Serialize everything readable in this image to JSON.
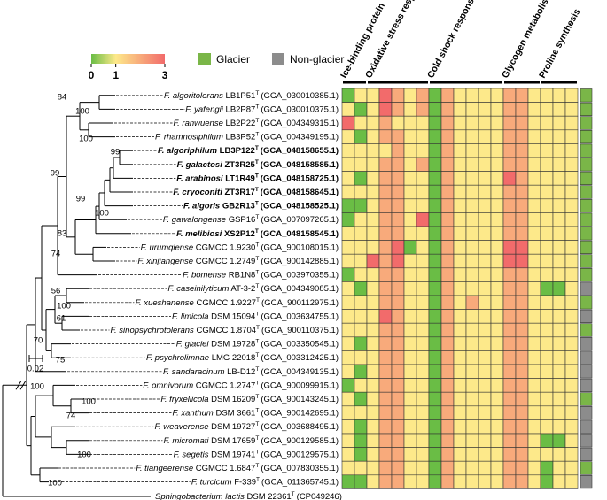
{
  "chart_data": {
    "type": "heatmap",
    "colorbar": {
      "range": [
        0,
        3
      ],
      "ticks": [
        0,
        1,
        3
      ],
      "colors": [
        "#6abd45",
        "#fde98a",
        "#f26b6b"
      ]
    },
    "legend": [
      {
        "name": "Glacier",
        "color": "#7ab648"
      },
      {
        "name": "Non-glacier",
        "color": "#8c8c8c"
      }
    ],
    "scale_bar": "0.02",
    "bootstraps": [
      84,
      100,
      100,
      99,
      99,
      99,
      100,
      83,
      74,
      56,
      100,
      61,
      70,
      75,
      100,
      100,
      74,
      100,
      100
    ],
    "taxa": [
      {
        "species": "F. algoritolerans",
        "strain": "LB1P51",
        "sup": "T",
        "accession": "(GCA_030010385.1)",
        "habitat": "Glacier"
      },
      {
        "species": "F. yafengii",
        "strain": "LB2P87",
        "sup": "T",
        "accession": "(GCA_030010375.1)",
        "habitat": "Glacier"
      },
      {
        "species": "F. ranwuense",
        "strain": "LB2P22",
        "sup": "T",
        "accession": "(GCA_004349315.1)",
        "habitat": "Glacier"
      },
      {
        "species": "F. rhamnosiphilum",
        "strain": "LB3P52",
        "sup": "T",
        "accession": "(GCA_004349195.1)",
        "habitat": "Glacier"
      },
      {
        "species": "F. algoriphilum",
        "strain": "LB3P122",
        "sup": "T",
        "accession": "(GCA_048158655.1)",
        "habitat": "Glacier",
        "bold": true
      },
      {
        "species": "F. galactosi",
        "strain": "ZT3R25",
        "sup": "T",
        "accession": "(GCA_048158585.1)",
        "habitat": "Glacier",
        "bold": true
      },
      {
        "species": "F. arabinosi",
        "strain": "LT1R49",
        "sup": "T",
        "accession": "(GCA_048158725.1)",
        "habitat": "Glacier",
        "bold": true
      },
      {
        "species": "F. cryoconiti",
        "strain": "ZT3R17",
        "sup": "T",
        "accession": "(GCA_048158645.1)",
        "habitat": "Glacier",
        "bold": true
      },
      {
        "species": "F. algoris",
        "strain": "GB2R13",
        "sup": "T",
        "accession": "(GCA_048158525.1)",
        "habitat": "Glacier",
        "bold": true
      },
      {
        "species": "F. gawalongense",
        "strain": "GSP16",
        "sup": "T",
        "accession": "(GCA_007097265.1)",
        "habitat": "Glacier"
      },
      {
        "species": "F. melibiosi",
        "strain": "XS2P12",
        "sup": "T",
        "accession": "(GCA_048158545.1)",
        "habitat": "Glacier",
        "bold": true
      },
      {
        "species": "F. urumqiense",
        "strain": "CGMCC 1.9230",
        "sup": "T",
        "accession": "(GCA_900108015.1)",
        "habitat": "Glacier"
      },
      {
        "species": "F. xinjiangense",
        "strain": "CGMCC 1.2749",
        "sup": "T",
        "accession": "(GCA_900142885.1)",
        "habitat": "Glacier"
      },
      {
        "species": "F. bomense",
        "strain": "RB1N8",
        "sup": "T",
        "accession": "(GCA_003970355.1)",
        "habitat": "Glacier"
      },
      {
        "species": "F. caseinilyticum",
        "strain": "AT-3-2",
        "sup": "T",
        "accession": "(GCA_004349085.1)",
        "habitat": "Non-glacier"
      },
      {
        "species": "F. xueshanense",
        "strain": "CGMCC 1.9227",
        "sup": "T",
        "accession": "(GCA_900112975.1)",
        "habitat": "Glacier"
      },
      {
        "species": "F. limicola",
        "strain": "DSM 15094",
        "sup": "T",
        "accession": "(GCA_003634755.1)",
        "habitat": "Non-glacier"
      },
      {
        "species": "F. sinopsychrotolerans",
        "strain": "CGMCC 1.8704",
        "sup": "T",
        "accession": "(GCA_900110375.1)",
        "habitat": "Glacier"
      },
      {
        "species": "F. glaciei",
        "strain": "DSM 19728",
        "sup": "T",
        "accession": "(GCA_003350545.1)",
        "habitat": "Non-glacier"
      },
      {
        "species": "F. psychrolimnae",
        "strain": "LMG 22018",
        "sup": "T",
        "accession": "(GCA_003312425.1)",
        "habitat": "Non-glacier"
      },
      {
        "species": "F. sandaracinum",
        "strain": "LB-D12",
        "sup": "T",
        "accession": "(GCA_004349135.1)",
        "habitat": "Non-glacier"
      },
      {
        "species": "F. omnivorum",
        "strain": "CGMCC 1.2747",
        "sup": "T",
        "accession": "(GCA_900099915.1)",
        "habitat": "Non-glacier"
      },
      {
        "species": "F. fryxellicola",
        "strain": "DSM 16209",
        "sup": "T",
        "accession": "(GCA_900143245.1)",
        "habitat": "Glacier"
      },
      {
        "species": "F. xanthum",
        "strain": "DSM 3661",
        "sup": "T",
        "accession": "(GCA_900142695.1)",
        "habitat": "Non-glacier"
      },
      {
        "species": "F. weaverense",
        "strain": "DSM 19727",
        "sup": "T",
        "accession": "(GCA_003688495.1)",
        "habitat": "Non-glacier"
      },
      {
        "species": "F. micromati",
        "strain": "DSM 17659",
        "sup": "T",
        "accession": "(GCA_900129585.1)",
        "habitat": "Non-glacier"
      },
      {
        "species": "F. segetis",
        "strain": "DSM 19741",
        "sup": "T",
        "accession": "(GCA_900129575.1)",
        "habitat": "Non-glacier"
      },
      {
        "species": "F. tiangeerense",
        "strain": "CGMCC 1.6847",
        "sup": "T",
        "accession": "(GCA_007830355.1)",
        "habitat": "Glacier"
      },
      {
        "species": "F. turcicum",
        "strain": "F-339",
        "sup": "T",
        "accession": "(GCA_011365745.1)",
        "habitat": "Non-glacier"
      }
    ],
    "outgroup": {
      "species": "Sphingobacterium lactis",
      "strain": "DSM 22361",
      "sup": "T",
      "accession": "(CP049246)"
    },
    "groups": [
      {
        "name": "Ice-binding protein",
        "values": [
          [
            0,
            1
          ],
          [
            1,
            0
          ],
          [
            3,
            1
          ],
          [
            1,
            0
          ],
          [
            1,
            1
          ],
          [
            1,
            1
          ],
          [
            1,
            0
          ],
          [
            1,
            1
          ],
          [
            0,
            0
          ],
          [
            0,
            1
          ],
          [
            1,
            1
          ],
          [
            1,
            1
          ],
          [
            1,
            1
          ],
          [
            0,
            1
          ],
          [
            1,
            0
          ],
          [
            1,
            1
          ],
          [
            1,
            1
          ],
          [
            1,
            1
          ],
          [
            1,
            0
          ],
          [
            1,
            1
          ],
          [
            1,
            0
          ],
          [
            0,
            1
          ],
          [
            1,
            0
          ],
          [
            1,
            1
          ],
          [
            1,
            0
          ],
          [
            1,
            0
          ],
          [
            1,
            0
          ],
          [
            1,
            1
          ],
          [
            0,
            0
          ]
        ]
      },
      {
        "name": "Oxidative stress response",
        "values": [
          [
            1,
            3,
            2,
            1,
            2
          ],
          [
            1,
            3,
            2,
            1,
            2
          ],
          [
            1,
            2,
            1,
            1,
            1
          ],
          [
            1,
            2,
            2,
            1,
            1
          ],
          [
            1,
            1,
            2,
            1,
            1
          ],
          [
            1,
            2,
            2,
            1,
            2
          ],
          [
            1,
            2,
            2,
            1,
            1
          ],
          [
            1,
            2,
            2,
            1,
            1
          ],
          [
            1,
            2,
            2,
            1,
            1
          ],
          [
            1,
            2,
            2,
            1,
            3
          ],
          [
            1,
            2,
            2,
            1,
            1
          ],
          [
            1,
            2,
            3,
            0,
            1
          ],
          [
            3,
            2,
            3,
            1,
            1
          ],
          [
            1,
            2,
            2,
            1,
            1
          ],
          [
            1,
            2,
            2,
            1,
            1
          ],
          [
            1,
            2,
            2,
            1,
            1
          ],
          [
            1,
            3,
            2,
            1,
            1
          ],
          [
            1,
            2,
            2,
            1,
            1
          ],
          [
            1,
            2,
            2,
            1,
            1
          ],
          [
            1,
            2,
            2,
            1,
            1
          ],
          [
            1,
            2,
            2,
            1,
            1
          ],
          [
            1,
            2,
            2,
            1,
            1
          ],
          [
            1,
            2,
            2,
            1,
            1
          ],
          [
            1,
            2,
            2,
            1,
            1
          ],
          [
            1,
            2,
            2,
            1,
            1
          ],
          [
            1,
            2,
            2,
            1,
            1
          ],
          [
            1,
            2,
            2,
            1,
            1
          ],
          [
            1,
            2,
            2,
            1,
            1
          ],
          [
            1,
            2,
            2,
            1,
            1
          ]
        ]
      },
      {
        "name": "Cold shock response",
        "values": [
          [
            0,
            2,
            1,
            1,
            1,
            1
          ],
          [
            0,
            2,
            1,
            1,
            1,
            1
          ],
          [
            0,
            2,
            1,
            1,
            1,
            1
          ],
          [
            0,
            2,
            1,
            1,
            1,
            1
          ],
          [
            0,
            2,
            1,
            1,
            1,
            1
          ],
          [
            0,
            2,
            1,
            1,
            1,
            1
          ],
          [
            0,
            2,
            1,
            1,
            1,
            1
          ],
          [
            0,
            2,
            1,
            1,
            1,
            1
          ],
          [
            0,
            2,
            1,
            1,
            1,
            1
          ],
          [
            0,
            2,
            1,
            1,
            1,
            1
          ],
          [
            0,
            2,
            1,
            1,
            1,
            1
          ],
          [
            0,
            2,
            1,
            1,
            1,
            1
          ],
          [
            0,
            2,
            1,
            1,
            1,
            1
          ],
          [
            0,
            2,
            1,
            1,
            1,
            1
          ],
          [
            0,
            2,
            1,
            1,
            1,
            1
          ],
          [
            0,
            2,
            1,
            2,
            1,
            1
          ],
          [
            0,
            2,
            1,
            1,
            1,
            1
          ],
          [
            0,
            2,
            1,
            1,
            1,
            1
          ],
          [
            0,
            2,
            1,
            1,
            1,
            1
          ],
          [
            0,
            2,
            1,
            1,
            1,
            1
          ],
          [
            0,
            2,
            1,
            1,
            1,
            1
          ],
          [
            0,
            2,
            1,
            1,
            1,
            1
          ],
          [
            0,
            2,
            1,
            1,
            1,
            1
          ],
          [
            0,
            2,
            1,
            1,
            1,
            1
          ],
          [
            0,
            2,
            1,
            1,
            1,
            1
          ],
          [
            0,
            2,
            1,
            1,
            1,
            1
          ],
          [
            0,
            2,
            1,
            1,
            1,
            1
          ],
          [
            0,
            2,
            1,
            1,
            1,
            1
          ],
          [
            0,
            2,
            1,
            1,
            1,
            1
          ]
        ]
      },
      {
        "name": "Glycogen metabolism",
        "values": [
          [
            2,
            2,
            1
          ],
          [
            2,
            2,
            1
          ],
          [
            2,
            2,
            1
          ],
          [
            2,
            2,
            1
          ],
          [
            2,
            2,
            1
          ],
          [
            2,
            2,
            1
          ],
          [
            3,
            2,
            1
          ],
          [
            2,
            2,
            1
          ],
          [
            2,
            2,
            1
          ],
          [
            2,
            2,
            1
          ],
          [
            2,
            2,
            1
          ],
          [
            3,
            3,
            1
          ],
          [
            3,
            3,
            1
          ],
          [
            2,
            2,
            1
          ],
          [
            2,
            2,
            1
          ],
          [
            2,
            2,
            1
          ],
          [
            2,
            2,
            1
          ],
          [
            2,
            2,
            1
          ],
          [
            2,
            2,
            1
          ],
          [
            2,
            2,
            1
          ],
          [
            2,
            2,
            1
          ],
          [
            2,
            2,
            1
          ],
          [
            2,
            2,
            1
          ],
          [
            2,
            2,
            1
          ],
          [
            2,
            2,
            1
          ],
          [
            2,
            2,
            1
          ],
          [
            2,
            2,
            1
          ],
          [
            2,
            2,
            1
          ],
          [
            2,
            2,
            1
          ]
        ]
      },
      {
        "name": "Proline synthesis",
        "values": [
          [
            1,
            1,
            1
          ],
          [
            1,
            1,
            1
          ],
          [
            1,
            1,
            1
          ],
          [
            1,
            1,
            1
          ],
          [
            1,
            1,
            1
          ],
          [
            1,
            1,
            1
          ],
          [
            1,
            1,
            1
          ],
          [
            1,
            1,
            1
          ],
          [
            1,
            1,
            1
          ],
          [
            1,
            1,
            1
          ],
          [
            1,
            1,
            1
          ],
          [
            1,
            1,
            1
          ],
          [
            1,
            1,
            1
          ],
          [
            1,
            1,
            1
          ],
          [
            0,
            0,
            1
          ],
          [
            1,
            1,
            1
          ],
          [
            1,
            1,
            1
          ],
          [
            1,
            1,
            1
          ],
          [
            1,
            1,
            1
          ],
          [
            1,
            1,
            1
          ],
          [
            1,
            1,
            1
          ],
          [
            1,
            1,
            1
          ],
          [
            1,
            1,
            1
          ],
          [
            1,
            1,
            1
          ],
          [
            1,
            1,
            1
          ],
          [
            0,
            0,
            1
          ],
          [
            1,
            1,
            1
          ],
          [
            0,
            1,
            1
          ],
          [
            0,
            1,
            1
          ]
        ]
      }
    ]
  }
}
